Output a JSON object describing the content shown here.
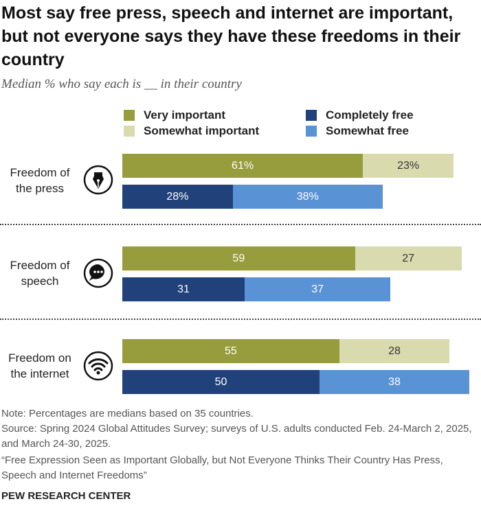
{
  "chart_data": {
    "type": "stacked-bar",
    "title": "Most say free press, speech and internet are important, but not everyone says they have these freedoms in their country",
    "subtitle": "Median % who say each is __ in their country",
    "categories": [
      "Freedom of the press",
      "Freedom of speech",
      "Freedom on the internet"
    ],
    "series": [
      {
        "name": "Very important",
        "color": "#979c3c",
        "values": [
          61,
          59,
          55
        ],
        "value_labels": [
          "61%",
          "59",
          "55"
        ]
      },
      {
        "name": "Somewhat important",
        "color": "#d9dbae",
        "values": [
          23,
          27,
          28
        ],
        "value_labels": [
          "23%",
          "27",
          "28"
        ]
      },
      {
        "name": "Completely free",
        "color": "#204179",
        "values": [
          28,
          31,
          50
        ],
        "value_labels": [
          "28%",
          "31",
          "50"
        ]
      },
      {
        "name": "Somewhat free",
        "color": "#5a92d6",
        "values": [
          38,
          37,
          38
        ],
        "value_labels": [
          "38%",
          "37",
          "38"
        ]
      }
    ],
    "note": "Note: Percentages are medians based on 35 countries.",
    "source": "Source: Spring 2024 Global Attitudes Survey; surveys of U.S. adults conducted Feb. 24-March 2, 2025, and March 24-30, 2025.",
    "report": "“Free Expression Seen as Important Globally, but Not Everyone Thinks Their Country Has Press, Speech and Internet Freedoms”",
    "credit": "PEW RESEARCH CENTER"
  }
}
